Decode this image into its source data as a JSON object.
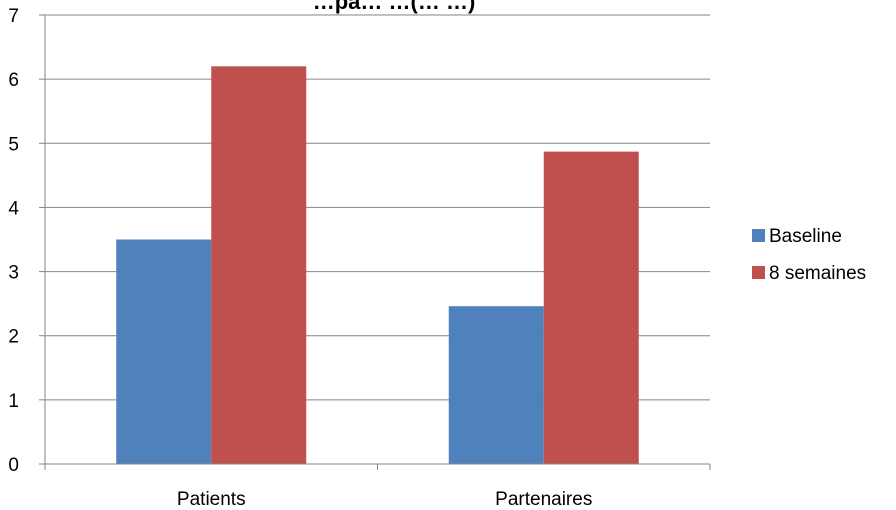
{
  "chart_data": {
    "type": "bar",
    "title": "…pa… …(… …)",
    "categories": [
      "Patients",
      "Partenaires"
    ],
    "series": [
      {
        "name": "Baseline",
        "values": [
          3.5,
          2.46
        ],
        "color": "#4F81BD"
      },
      {
        "name": "8 semaines",
        "values": [
          6.2,
          4.87
        ],
        "color": "#C0504D"
      }
    ],
    "yticks": [
      "0",
      "1",
      "2",
      "3",
      "4",
      "5",
      "6",
      "7"
    ],
    "ylim": [
      0,
      7
    ],
    "grid": true,
    "legend": "right"
  }
}
